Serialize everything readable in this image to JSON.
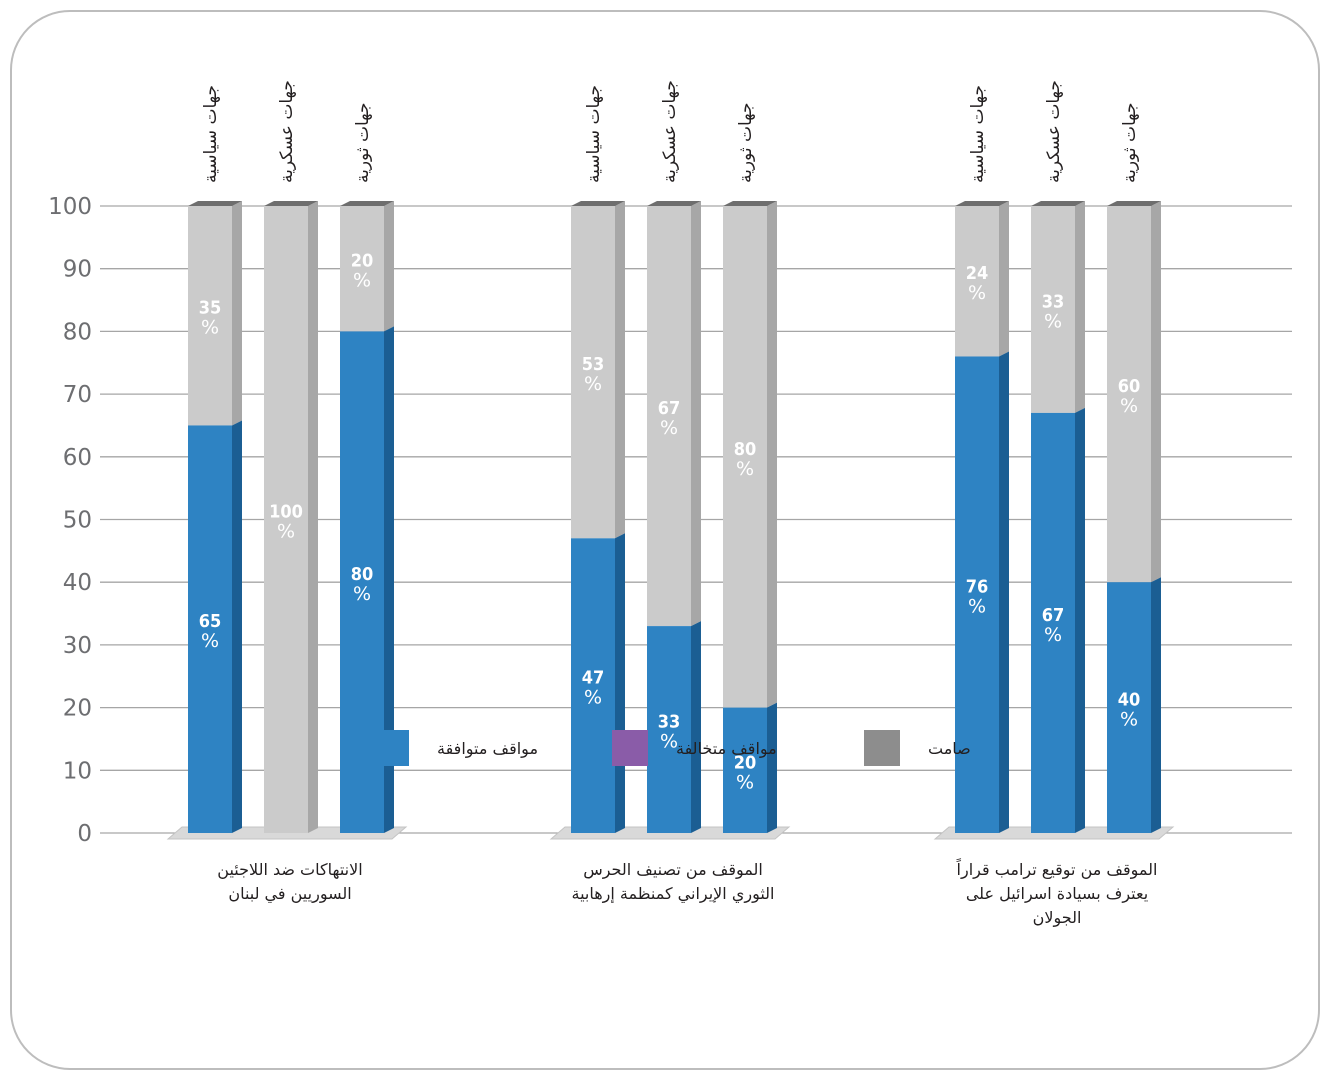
{
  "chart_data": {
    "type": "bar",
    "stacked": true,
    "ylim": [
      0,
      100
    ],
    "yticks": [
      0,
      10,
      20,
      30,
      40,
      50,
      60,
      70,
      80,
      90,
      100
    ],
    "grid": true,
    "groups": [
      {
        "label_lines": [
          "الانتهاكات ضد اللاجئين",
          "السوريين في لبنان"
        ],
        "bars": [
          {
            "category": "جهات سياسية",
            "agree": 65,
            "silent": 35
          },
          {
            "category": "جهات عسكرية",
            "agree": 0,
            "silent": 100
          },
          {
            "category": "جهات ثورية",
            "agree": 80,
            "silent": 20
          }
        ]
      },
      {
        "label_lines": [
          "الموقف من تصنيف الحرس",
          "الثوري الإيراني كمنظمة إرهابية"
        ],
        "bars": [
          {
            "category": "جهات سياسية",
            "agree": 47,
            "silent": 53
          },
          {
            "category": "جهات عسكرية",
            "agree": 33,
            "silent": 67
          },
          {
            "category": "جهات ثورية",
            "agree": 20,
            "silent": 80
          }
        ]
      },
      {
        "label_lines": [
          "الموقف من توقيع ترامب قراراً",
          "يعترف بسيادة اسرائيل على",
          "الجولان"
        ],
        "bars": [
          {
            "category": "جهات سياسية",
            "agree": 76,
            "silent": 24
          },
          {
            "category": "جهات عسكرية",
            "agree": 67,
            "silent": 33
          },
          {
            "category": "جهات ثورية",
            "agree": 40,
            "silent": 60
          }
        ]
      }
    ],
    "legend": [
      {
        "key": "agree",
        "label": "مواقف متوافقة",
        "color": "#2e83c3"
      },
      {
        "key": "oppose",
        "label": "مواقف متخالفة",
        "color": "#8a5ca8"
      },
      {
        "key": "silent",
        "label": "صامت",
        "color": "#8d8d8d"
      }
    ],
    "colors": {
      "agree_front": "#2e83c3",
      "agree_side": "#1b5e93",
      "agree_top": "#236ea8",
      "silent_front": "#cbcbcb",
      "silent_side": "#a7a7a7",
      "top_cap": "#6e6e6e",
      "grid": "#a6a6a6",
      "floor": "#d9d9d9"
    },
    "percent_symbol": "%"
  }
}
